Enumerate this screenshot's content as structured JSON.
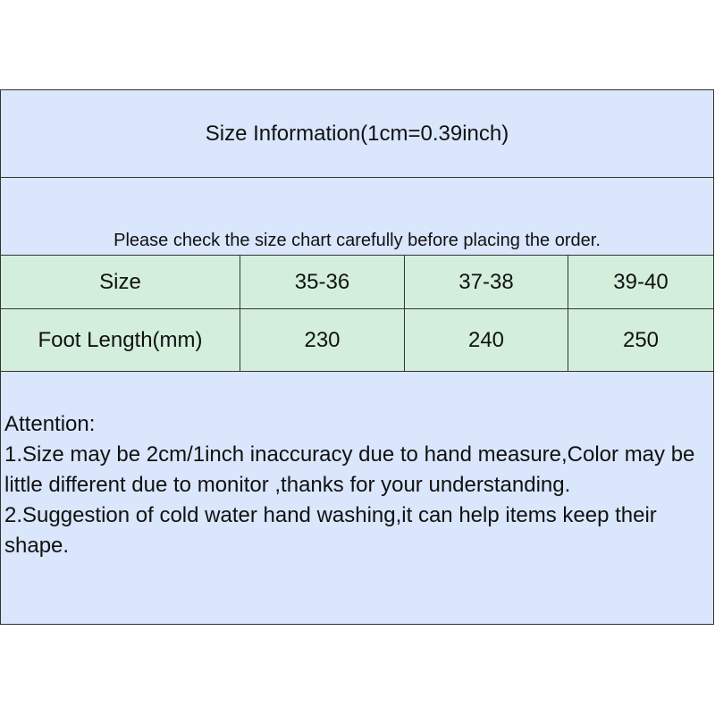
{
  "title": "Size Information(1cm=0.39inch)",
  "subtitle": "Please check the size chart carefully before placing the order.",
  "table": {
    "rows": [
      [
        "Size",
        "35-36",
        "37-38",
        "39-40"
      ],
      [
        "Foot Length(mm)",
        "230",
        "240",
        "250"
      ]
    ]
  },
  "notes": {
    "heading": "Attention:",
    "items": [
      "1.Size may be 2cm/1inch inaccuracy due to hand measure,Color may be little different due to monitor ,thanks for your understanding.",
      "2.Suggestion of cold water hand washing,it can help items keep their shape."
    ]
  },
  "colors": {
    "header_bg": "#d9e6fb",
    "table_bg": "#d3efdb",
    "border": "#333333"
  }
}
